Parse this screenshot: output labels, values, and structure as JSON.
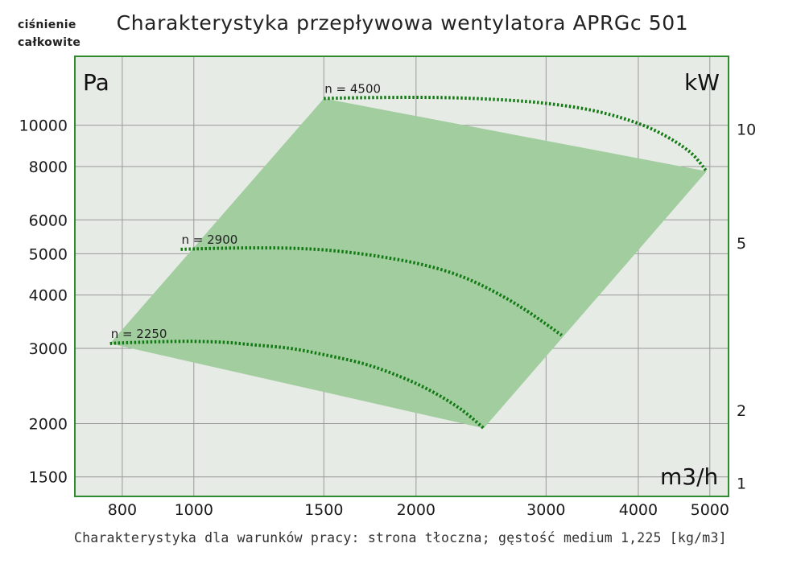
{
  "header": {
    "corner_label_line1": "ciśnienie",
    "corner_label_line2": "całkowite",
    "title": "Charakterystyka przepływowa wentylatora APRGc 501"
  },
  "footnote": "Charakterystyka dla warunków pracy: strona tłoczna; gęstość medium 1,225 [kg/m3]",
  "chart_data": {
    "type": "line",
    "title": "Charakterystyka przepływowa wentylatora APRGc 501",
    "x_unit": "m3/h",
    "y_unit": "Pa",
    "y2_unit": "kW",
    "x_scale": "log",
    "y_scale": "log",
    "xlim": [
      690,
      5300
    ],
    "ylim": [
      1350,
      14500
    ],
    "x_ticks": [
      800,
      1000,
      1500,
      2000,
      3000,
      4000,
      5000
    ],
    "y_ticks": [
      1500,
      2000,
      3000,
      4000,
      5000,
      6000,
      8000,
      10000
    ],
    "y2_ticks": [
      {
        "label": "10",
        "at_pa": 9800
      },
      {
        "label": "5",
        "at_pa": 5300
      },
      {
        "label": "2",
        "at_pa": 2150
      },
      {
        "label": "1",
        "at_pa": 1450
      }
    ],
    "grid": true,
    "series": [
      {
        "name": "n = 2250",
        "x": [
          770,
          800,
          900,
          1000,
          1100,
          1200,
          1350,
          1500,
          1700,
          1900,
          2100,
          2300,
          2470
        ],
        "y": [
          3080,
          3090,
          3110,
          3115,
          3100,
          3060,
          3000,
          2900,
          2760,
          2580,
          2380,
          2160,
          1950
        ]
      },
      {
        "name": "n = 2900",
        "x": [
          960,
          1100,
          1250,
          1400,
          1550,
          1750,
          2000,
          2250,
          2500,
          2800,
          3150
        ],
        "y": [
          5120,
          5150,
          5160,
          5140,
          5080,
          4950,
          4750,
          4490,
          4150,
          3710,
          3220
        ]
      },
      {
        "name": "n = 4500",
        "x": [
          1500,
          1700,
          2000,
          2300,
          2650,
          3000,
          3450,
          3900,
          4300,
          4700,
          4950
        ],
        "y": [
          11550,
          11600,
          11620,
          11580,
          11450,
          11250,
          10850,
          10250,
          9550,
          8650,
          7800
        ]
      }
    ],
    "operating_area": {
      "x": [
        770,
        1500,
        4950,
        2470
      ],
      "y": [
        3080,
        11550,
        7800,
        1950
      ]
    },
    "colors": {
      "plot_background": "#e7ebe6",
      "grid": "#999999",
      "border": "#2e8b2e",
      "area_fill": "#a1cd9f",
      "curve": "#127a12"
    }
  }
}
